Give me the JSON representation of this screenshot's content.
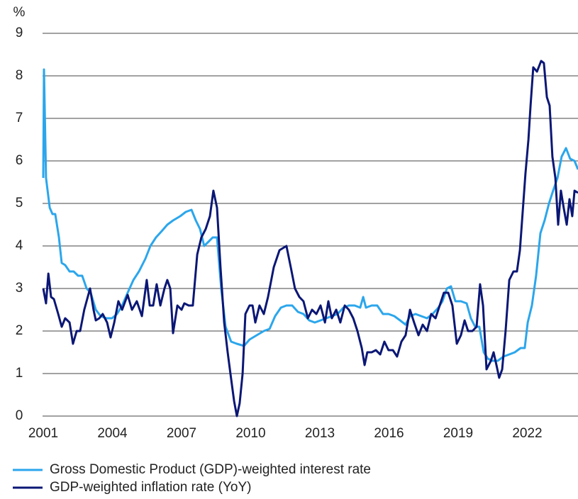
{
  "chart_data": {
    "type": "line",
    "y_unit_label": "%",
    "xlim": [
      2001,
      2024.2
    ],
    "xticks": [
      2001,
      2004,
      2007,
      2010,
      2013,
      2016,
      2019,
      2022
    ],
    "ylim": [
      0,
      9
    ],
    "yticks": [
      0,
      1,
      2,
      3,
      4,
      5,
      6,
      7,
      8,
      9
    ],
    "grid": true,
    "legend": "bottom-left",
    "series": [
      {
        "name": "Gross Domestic Product (GDP)-weighted interest rate",
        "color": "#2ba6ec",
        "x": [
          2001.0,
          2001.03,
          2001.12,
          2001.28,
          2001.4,
          2001.52,
          2001.68,
          2001.8,
          2001.95,
          2002.14,
          2002.32,
          2002.51,
          2002.69,
          2002.88,
          2003.06,
          2003.28,
          2003.49,
          2003.74,
          2003.98,
          2004.2,
          2004.42,
          2004.66,
          2004.91,
          2005.15,
          2005.43,
          2005.65,
          2005.89,
          2006.14,
          2006.38,
          2006.63,
          2006.94,
          2007.18,
          2007.43,
          2007.62,
          2007.8,
          2007.98,
          2008.17,
          2008.35,
          2008.54,
          2008.72,
          2008.91,
          2009.15,
          2009.4,
          2009.71,
          2009.95,
          2010.26,
          2010.57,
          2010.82,
          2011.06,
          2011.31,
          2011.55,
          2011.8,
          2012.05,
          2012.29,
          2012.54,
          2012.78,
          2013.03,
          2013.28,
          2013.52,
          2013.77,
          2014.02,
          2014.26,
          2014.51,
          2014.75,
          2014.88,
          2015.0,
          2015.25,
          2015.49,
          2015.74,
          2015.98,
          2016.23,
          2016.48,
          2016.72,
          2016.91,
          2017.15,
          2017.4,
          2017.65,
          2017.89,
          2018.14,
          2018.32,
          2018.51,
          2018.69,
          2018.88,
          2019.12,
          2019.37,
          2019.55,
          2019.74,
          2019.92,
          2020.11,
          2020.29,
          2020.48,
          2020.72,
          2020.97,
          2021.22,
          2021.46,
          2021.71,
          2021.89,
          2022.02,
          2022.2,
          2022.38,
          2022.57,
          2022.75,
          2022.94,
          2023.12,
          2023.31,
          2023.49,
          2023.68,
          2023.86,
          2024.05,
          2024.2
        ],
        "values": [
          5.6,
          8.15,
          5.6,
          4.9,
          4.75,
          4.75,
          4.2,
          3.6,
          3.55,
          3.4,
          3.4,
          3.3,
          3.3,
          3.0,
          2.9,
          2.5,
          2.35,
          2.3,
          2.3,
          2.4,
          2.6,
          2.9,
          3.2,
          3.4,
          3.7,
          4.0,
          4.2,
          4.35,
          4.5,
          4.6,
          4.7,
          4.8,
          4.85,
          4.6,
          4.4,
          4.0,
          4.1,
          4.2,
          4.2,
          3.0,
          2.1,
          1.75,
          1.7,
          1.65,
          1.8,
          1.9,
          2.0,
          2.05,
          2.35,
          2.55,
          2.6,
          2.6,
          2.45,
          2.4,
          2.25,
          2.2,
          2.25,
          2.3,
          2.35,
          2.4,
          2.55,
          2.6,
          2.6,
          2.55,
          2.8,
          2.55,
          2.6,
          2.6,
          2.4,
          2.4,
          2.35,
          2.25,
          2.15,
          2.35,
          2.4,
          2.35,
          2.3,
          2.4,
          2.55,
          2.7,
          3.0,
          3.05,
          2.7,
          2.7,
          2.65,
          2.3,
          2.1,
          2.1,
          1.5,
          1.35,
          1.3,
          1.3,
          1.4,
          1.45,
          1.5,
          1.6,
          1.6,
          2.2,
          2.6,
          3.3,
          4.3,
          4.6,
          5.0,
          5.3,
          5.6,
          6.1,
          6.3,
          6.05,
          6.0,
          5.8
        ]
      },
      {
        "name": "GDP-weighted inflation rate (YoY)",
        "color": "#0b1775",
        "x": [
          2001.0,
          2001.12,
          2001.22,
          2001.34,
          2001.46,
          2001.65,
          2001.8,
          2001.95,
          2002.14,
          2002.29,
          2002.45,
          2002.6,
          2002.78,
          2003.03,
          2003.18,
          2003.28,
          2003.43,
          2003.58,
          2003.77,
          2003.92,
          2004.08,
          2004.26,
          2004.42,
          2004.66,
          2004.85,
          2005.06,
          2005.28,
          2005.49,
          2005.62,
          2005.77,
          2005.92,
          2006.08,
          2006.26,
          2006.38,
          2006.51,
          2006.63,
          2006.82,
          2007.0,
          2007.12,
          2007.31,
          2007.49,
          2007.68,
          2007.86,
          2008.05,
          2008.23,
          2008.38,
          2008.54,
          2008.69,
          2008.85,
          2009.0,
          2009.12,
          2009.28,
          2009.4,
          2009.52,
          2009.65,
          2009.77,
          2009.95,
          2010.08,
          2010.2,
          2010.38,
          2010.57,
          2010.75,
          2011.0,
          2011.25,
          2011.55,
          2011.74,
          2011.92,
          2012.11,
          2012.29,
          2012.48,
          2012.66,
          2012.85,
          2013.03,
          2013.22,
          2013.37,
          2013.52,
          2013.71,
          2013.89,
          2014.08,
          2014.26,
          2014.45,
          2014.63,
          2014.82,
          2014.94,
          2015.06,
          2015.25,
          2015.43,
          2015.62,
          2015.8,
          2015.98,
          2016.17,
          2016.35,
          2016.54,
          2016.72,
          2016.91,
          2017.09,
          2017.28,
          2017.46,
          2017.65,
          2017.83,
          2018.02,
          2018.2,
          2018.38,
          2018.57,
          2018.75,
          2018.94,
          2019.12,
          2019.28,
          2019.43,
          2019.62,
          2019.8,
          2019.95,
          2020.08,
          2020.23,
          2020.42,
          2020.54,
          2020.66,
          2020.78,
          2020.91,
          2021.06,
          2021.22,
          2021.4,
          2021.55,
          2021.68,
          2021.8,
          2021.92,
          2022.05,
          2022.14,
          2022.26,
          2022.42,
          2022.6,
          2022.72,
          2022.85,
          2022.97,
          2023.09,
          2023.22,
          2023.34,
          2023.46,
          2023.58,
          2023.71,
          2023.83,
          2023.95,
          2024.05,
          2024.2
        ],
        "values": [
          3.0,
          2.65,
          3.35,
          2.8,
          2.75,
          2.4,
          2.1,
          2.3,
          2.2,
          1.7,
          2.0,
          2.0,
          2.5,
          3.0,
          2.5,
          2.25,
          2.3,
          2.4,
          2.2,
          1.85,
          2.2,
          2.7,
          2.5,
          2.85,
          2.5,
          2.7,
          2.35,
          3.2,
          2.6,
          2.6,
          3.1,
          2.6,
          3.0,
          3.2,
          3.0,
          1.95,
          2.6,
          2.5,
          2.65,
          2.6,
          2.6,
          3.8,
          4.2,
          4.4,
          4.7,
          5.3,
          4.9,
          3.5,
          2.2,
          1.5,
          1.0,
          0.35,
          0.0,
          0.3,
          1.0,
          2.4,
          2.6,
          2.6,
          2.2,
          2.6,
          2.4,
          2.8,
          3.5,
          3.9,
          4.0,
          3.5,
          3.0,
          2.8,
          2.7,
          2.3,
          2.5,
          2.4,
          2.6,
          2.2,
          2.7,
          2.3,
          2.5,
          2.2,
          2.6,
          2.5,
          2.3,
          2.0,
          1.6,
          1.2,
          1.5,
          1.5,
          1.55,
          1.45,
          1.75,
          1.55,
          1.55,
          1.4,
          1.75,
          1.9,
          2.5,
          2.2,
          1.9,
          2.15,
          2.0,
          2.4,
          2.3,
          2.6,
          2.9,
          2.9,
          2.6,
          1.7,
          1.9,
          2.25,
          2.0,
          2.0,
          2.1,
          3.1,
          2.6,
          1.1,
          1.3,
          1.5,
          1.2,
          0.9,
          1.1,
          2.0,
          3.2,
          3.4,
          3.4,
          3.9,
          4.8,
          5.7,
          6.5,
          7.3,
          8.2,
          8.1,
          8.35,
          8.3,
          7.5,
          7.3,
          6.1,
          5.6,
          4.5,
          5.3,
          4.9,
          4.5,
          5.1,
          4.7,
          5.3,
          5.25
        ]
      }
    ]
  }
}
